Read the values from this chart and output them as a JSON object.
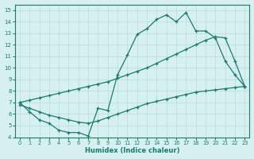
{
  "line1_x": [
    0,
    1,
    2,
    3,
    4,
    5,
    6,
    7,
    8,
    9,
    10,
    11,
    12,
    13,
    14,
    15,
    16,
    17,
    18,
    19,
    20,
    21,
    22,
    23
  ],
  "line1_y": [
    7.0,
    6.2,
    5.5,
    5.2,
    4.6,
    4.4,
    4.4,
    4.1,
    6.5,
    6.3,
    9.4,
    11.1,
    12.9,
    13.4,
    14.2,
    14.6,
    14.0,
    14.8,
    13.2,
    13.2,
    12.6,
    10.6,
    9.4,
    8.4
  ],
  "line2_x": [
    0,
    1,
    2,
    3,
    4,
    5,
    6,
    7,
    8,
    9,
    10,
    11,
    12,
    13,
    14,
    15,
    16,
    17,
    18,
    19,
    20,
    21,
    22,
    23
  ],
  "line2_y": [
    7.0,
    7.2,
    7.4,
    7.6,
    7.8,
    8.0,
    8.2,
    8.4,
    8.6,
    8.8,
    9.1,
    9.4,
    9.7,
    10.0,
    10.4,
    10.8,
    11.2,
    11.6,
    12.0,
    12.4,
    12.7,
    12.6,
    10.6,
    8.4
  ],
  "line3_x": [
    0,
    1,
    2,
    3,
    4,
    5,
    6,
    7,
    8,
    9,
    10,
    11,
    12,
    13,
    14,
    15,
    16,
    17,
    18,
    19,
    20,
    21,
    22,
    23
  ],
  "line3_y": [
    6.8,
    6.5,
    6.2,
    5.9,
    5.7,
    5.5,
    5.3,
    5.2,
    5.4,
    5.7,
    6.0,
    6.3,
    6.6,
    6.9,
    7.1,
    7.3,
    7.5,
    7.7,
    7.9,
    8.0,
    8.1,
    8.2,
    8.3,
    8.4
  ],
  "color": "#1a7a6e",
  "bg_color": "#d6f0ef",
  "grid_color": "#b8dbd9",
  "xlabel": "Humidex (Indice chaleur)",
  "xlim": [
    -0.5,
    23.5
  ],
  "ylim": [
    4,
    15.5
  ],
  "yticks": [
    4,
    5,
    6,
    7,
    8,
    9,
    10,
    11,
    12,
    13,
    14,
    15
  ],
  "xticks": [
    0,
    1,
    2,
    3,
    4,
    5,
    6,
    7,
    8,
    9,
    10,
    11,
    12,
    13,
    14,
    15,
    16,
    17,
    18,
    19,
    20,
    21,
    22,
    23
  ],
  "marker": "+"
}
